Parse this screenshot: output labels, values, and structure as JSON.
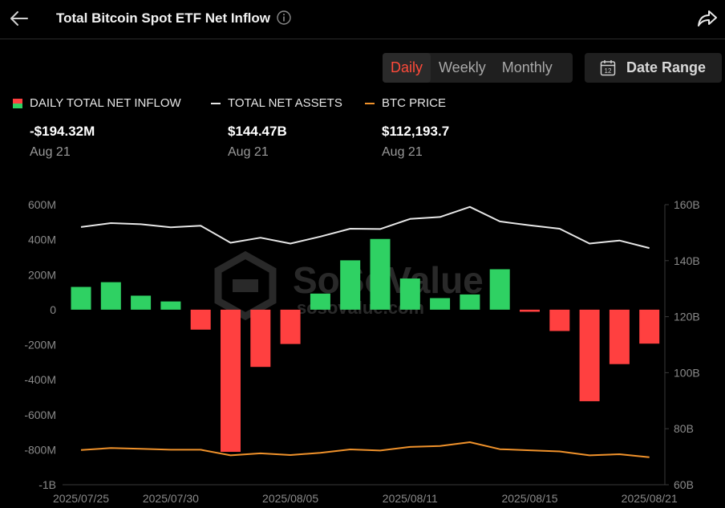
{
  "header": {
    "title": "Total Bitcoin Spot ETF Net Inflow",
    "back_icon": "arrow-left-icon",
    "info_icon": "info-circle-icon",
    "share_icon": "share-arrow-icon"
  },
  "controls": {
    "tabs": [
      {
        "label": "Daily",
        "active": true
      },
      {
        "label": "Weekly",
        "active": false
      },
      {
        "label": "Monthly",
        "active": false
      }
    ],
    "date_range_label": "Date Range",
    "date_range_icon": "calendar-12-icon"
  },
  "legend": [
    {
      "name": "DAILY TOTAL NET INFLOW",
      "value": "-$194.32M",
      "date": "Aug 21"
    },
    {
      "name": "TOTAL NET ASSETS",
      "value": "$144.47B",
      "date": "Aug 21"
    },
    {
      "name": "BTC PRICE",
      "value": "$112,193.7",
      "date": "Aug 21"
    }
  ],
  "watermark": {
    "brand": "SoSoValue",
    "site": "sosovalue.com"
  },
  "colors": {
    "positive": "#2fd163",
    "negative": "#ff4040",
    "assets_line": "#e6e6e6",
    "price_line": "#f0922b",
    "accent": "#ff4a3a"
  },
  "chart_data": {
    "type": "bar",
    "title": "Total Bitcoin Spot ETF Net Inflow",
    "dates": [
      "2025/07/25",
      "2025/07/28",
      "2025/07/29",
      "2025/07/30",
      "2025/07/31",
      "2025/08/01",
      "2025/08/04",
      "2025/08/05",
      "2025/08/06",
      "2025/08/07",
      "2025/08/08",
      "2025/08/11",
      "2025/08/12",
      "2025/08/13",
      "2025/08/14",
      "2025/08/15",
      "2025/08/18",
      "2025/08/19",
      "2025/08/20",
      "2025/08/21"
    ],
    "x_tick_labels": [
      "2025/07/25",
      "2025/07/30",
      "2025/08/05",
      "2025/08/11",
      "2025/08/15",
      "2025/08/21"
    ],
    "series": [
      {
        "name": "DAILY TOTAL NET INFLOW",
        "type": "bar",
        "axis": "left",
        "values": [
          130,
          157,
          80,
          47,
          -114,
          -812,
          -327,
          -196,
          92,
          282,
          404,
          178,
          66,
          87,
          231,
          -12,
          -122,
          -523,
          -311,
          -194
        ]
      },
      {
        "name": "TOTAL NET ASSETS",
        "type": "line",
        "axis": "right",
        "values": [
          152.0,
          153.4,
          153.0,
          151.9,
          152.5,
          146.4,
          148.2,
          146.1,
          148.6,
          151.4,
          151.3,
          154.9,
          155.6,
          159.2,
          154.0,
          152.6,
          151.4,
          146.1,
          147.2,
          144.5
        ]
      },
      {
        "name": "BTC PRICE",
        "type": "line",
        "axis": "right",
        "values": [
          72.4,
          73.1,
          72.8,
          72.5,
          72.5,
          70.5,
          71.2,
          70.6,
          71.4,
          72.6,
          72.2,
          73.5,
          73.8,
          75.2,
          72.7,
          72.3,
          71.9,
          70.5,
          70.9,
          69.8
        ]
      }
    ],
    "y_left": {
      "ticks": [
        600,
        400,
        200,
        0,
        -200,
        -400,
        -600,
        -800,
        -1000
      ],
      "tick_labels": [
        "600M",
        "400M",
        "200M",
        "0",
        "-200M",
        "-400M",
        "-600M",
        "-800M",
        "-1B"
      ],
      "range": [
        -1000,
        600
      ]
    },
    "y_right": {
      "ticks": [
        160,
        140,
        120,
        100,
        80,
        60
      ],
      "tick_labels": [
        "160B",
        "140B",
        "120B",
        "100B",
        "80B",
        "60B"
      ],
      "range": [
        60,
        160
      ]
    },
    "grid": false
  }
}
